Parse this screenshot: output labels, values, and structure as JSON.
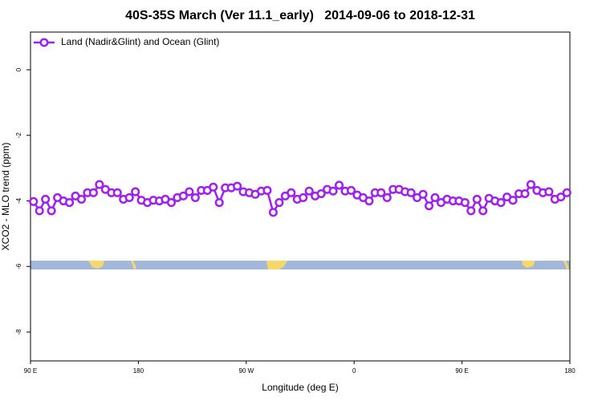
{
  "chart_data": {
    "type": "line",
    "title": "40S-35S March (Ver 11.1_early)   2014-09-06 to 2018-12-31",
    "x_label": "Longitude (deg E)",
    "y_label": "XCO2 - MLO trend (ppm)",
    "xlim": [
      90,
      540
    ],
    "ylim": [
      -8.88,
      1.15
    ],
    "xticks": [
      {
        "value": 90,
        "label": "90 E"
      },
      {
        "value": 180,
        "label": "180"
      },
      {
        "value": 270,
        "label": "90 W"
      },
      {
        "value": 360,
        "label": "0"
      },
      {
        "value": 450,
        "label": "90 E"
      },
      {
        "value": 540,
        "label": "180"
      }
    ],
    "yticks": [
      0,
      -2,
      -4,
      -6,
      -8
    ],
    "grid": false,
    "legend": "upper left",
    "series": [
      {
        "name": "Land (Nadir&Glint) and Ocean (Glint)",
        "color": "#a020f0",
        "x": [
          92.5,
          97.5,
          102.5,
          107.5,
          112.5,
          117.5,
          122.5,
          127.5,
          132.5,
          137.5,
          142.5,
          147.5,
          152.5,
          157.5,
          162.5,
          167.5,
          172.5,
          177.5,
          182.5,
          187.5,
          192.5,
          197.5,
          202.5,
          207.5,
          212.5,
          217.5,
          222.5,
          227.5,
          232.5,
          237.5,
          242.5,
          247.5,
          252.5,
          257.5,
          262.5,
          267.5,
          272.5,
          277.5,
          282.5,
          287.5,
          292.5,
          297.5,
          302.5,
          307.5,
          312.5,
          317.5,
          322.5,
          327.5,
          332.5,
          337.5,
          342.5,
          347.5,
          352.5,
          357.5,
          362.5,
          367.5,
          372.5,
          377.5,
          382.5,
          387.5,
          392.5,
          397.5,
          402.5,
          407.5,
          412.5,
          417.5,
          422.5,
          427.5,
          432.5,
          437.5,
          442.5,
          447.5,
          452.5,
          457.5,
          462.5,
          467.5,
          472.5,
          477.5,
          482.5,
          487.5,
          492.5,
          497.5,
          502.5,
          507.5,
          512.5,
          517.5,
          522.5,
          527.5,
          532.5,
          537.5
        ],
        "values": [
          -4.02,
          -4.3,
          -3.95,
          -4.3,
          -3.9,
          -4.0,
          -4.05,
          -3.85,
          -3.95,
          -3.75,
          -3.75,
          -3.5,
          -3.65,
          -3.75,
          -3.75,
          -3.95,
          -3.9,
          -3.72,
          -3.98,
          -4.05,
          -3.98,
          -4.0,
          -3.95,
          -4.05,
          -3.9,
          -3.85,
          -3.72,
          -3.9,
          -3.68,
          -3.68,
          -3.58,
          -4.05,
          -3.6,
          -3.6,
          -3.55,
          -3.72,
          -3.75,
          -3.8,
          -3.7,
          -3.68,
          -4.35,
          -4.05,
          -3.85,
          -3.75,
          -3.95,
          -3.9,
          -3.7,
          -3.85,
          -3.78,
          -3.65,
          -3.7,
          -3.52,
          -3.7,
          -3.68,
          -3.82,
          -3.9,
          -4.0,
          -3.75,
          -3.75,
          -3.9,
          -3.65,
          -3.65,
          -3.72,
          -3.75,
          -3.9,
          -3.8,
          -4.15,
          -3.9,
          -4.05,
          -3.95,
          -4.0,
          -4.0,
          -4.05,
          -4.3,
          -3.95,
          -4.3,
          -3.92,
          -4.0,
          -4.05,
          -3.88,
          -3.98,
          -3.78,
          -3.78,
          -3.5,
          -3.68,
          -3.75,
          -3.72,
          -3.95,
          -3.88,
          -3.75
        ]
      }
    ]
  }
}
